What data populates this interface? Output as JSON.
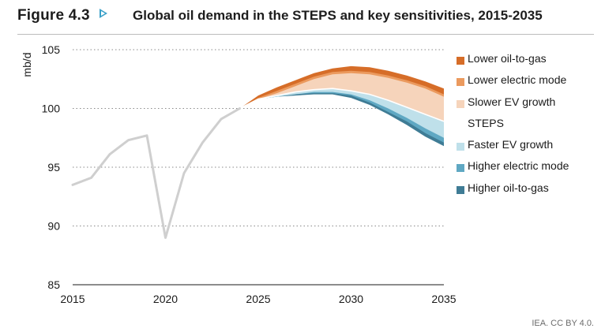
{
  "header": {
    "figure_label": "Figure 4.3",
    "title": "Global oil demand in the STEPS and key sensitivities, 2015-2035",
    "arrow_color": "#3aa0c8"
  },
  "credit": "IEA. CC BY 4.0.",
  "chart_data": {
    "type": "area",
    "xlabel": "",
    "ylabel": "mb/d",
    "xlim": [
      2015,
      2035
    ],
    "ylim": [
      85,
      105
    ],
    "x_ticks": [
      "2015",
      "2020",
      "2025",
      "2030",
      "2035"
    ],
    "y_ticks": [
      "85",
      "90",
      "95",
      "100",
      "105"
    ],
    "grid": "horizontal dotted",
    "legend_position": "right",
    "history": {
      "color": "#cfcfcf",
      "x": [
        2015,
        2016,
        2017,
        2018,
        2019,
        2020,
        2021,
        2022,
        2023,
        2024
      ],
      "values": [
        93.5,
        94.1,
        96.1,
        97.3,
        97.7,
        89.0,
        94.5,
        97.1,
        99.1,
        100.0
      ]
    },
    "projection_x": [
      2024,
      2025,
      2026,
      2027,
      2028,
      2029,
      2030,
      2031,
      2032,
      2033,
      2034,
      2035
    ],
    "steps_line": [
      100.0,
      100.8,
      101.1,
      101.4,
      101.6,
      101.7,
      101.5,
      101.2,
      100.7,
      100.1,
      99.5,
      98.9
    ],
    "series": [
      {
        "name": "Lower oil-to-gas",
        "color": "#d66d28",
        "values": [
          100.0,
          101.1,
          101.8,
          102.4,
          103.0,
          103.4,
          103.6,
          103.5,
          103.2,
          102.8,
          102.3,
          101.7
        ]
      },
      {
        "name": "Lower electric mode",
        "color": "#eb9a5e",
        "values": [
          100.0,
          100.9,
          101.5,
          102.1,
          102.7,
          103.1,
          103.2,
          103.1,
          102.8,
          102.4,
          101.9,
          101.2
        ]
      },
      {
        "name": "Slower EV growth",
        "color": "#f6d4bb",
        "values": [
          100.0,
          100.8,
          101.3,
          101.9,
          102.5,
          102.9,
          103.0,
          102.9,
          102.6,
          102.2,
          101.7,
          101.0
        ]
      },
      {
        "name": "STEPS",
        "color": "#ffffff",
        "values": []
      },
      {
        "name": "Faster EV growth",
        "color": "#bfe0ea",
        "values": [
          100.0,
          100.8,
          101.0,
          101.2,
          101.4,
          101.4,
          101.2,
          100.7,
          100.0,
          99.2,
          98.3,
          97.5
        ]
      },
      {
        "name": "Higher electric mode",
        "color": "#5fa8c3",
        "values": [
          100.0,
          100.8,
          101.0,
          101.2,
          101.3,
          101.3,
          101.1,
          100.5,
          99.7,
          98.9,
          97.9,
          97.1
        ]
      },
      {
        "name": "Higher oil-to-gas",
        "color": "#3f7c95",
        "values": [
          100.0,
          100.8,
          101.0,
          101.1,
          101.2,
          101.2,
          100.9,
          100.3,
          99.5,
          98.6,
          97.6,
          96.8
        ]
      }
    ]
  }
}
